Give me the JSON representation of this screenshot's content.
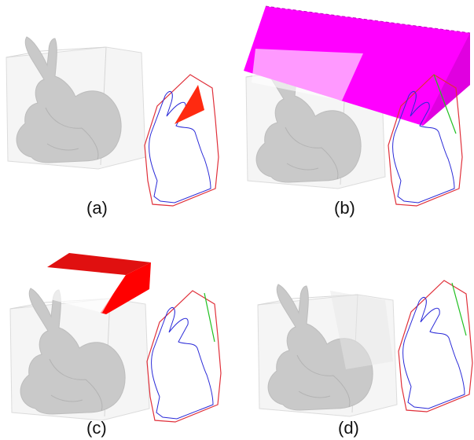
{
  "panels": [
    {
      "id": "a",
      "caption": "(a)",
      "cut_color": "#ff2a10"
    },
    {
      "id": "b",
      "caption": "(b)",
      "cut_color": "#ff00ff"
    },
    {
      "id": "c",
      "caption": "(c)",
      "cut_color": "#ff0000"
    },
    {
      "id": "d",
      "caption": "(d)",
      "cut_color": "none"
    }
  ],
  "colors": {
    "outline_red": "#e0303a",
    "outline_blue": "#2a2ad8",
    "outline_green": "#20c020",
    "bunny_gray": "#c8c8c8",
    "box_gray": "#e6e6e6"
  }
}
